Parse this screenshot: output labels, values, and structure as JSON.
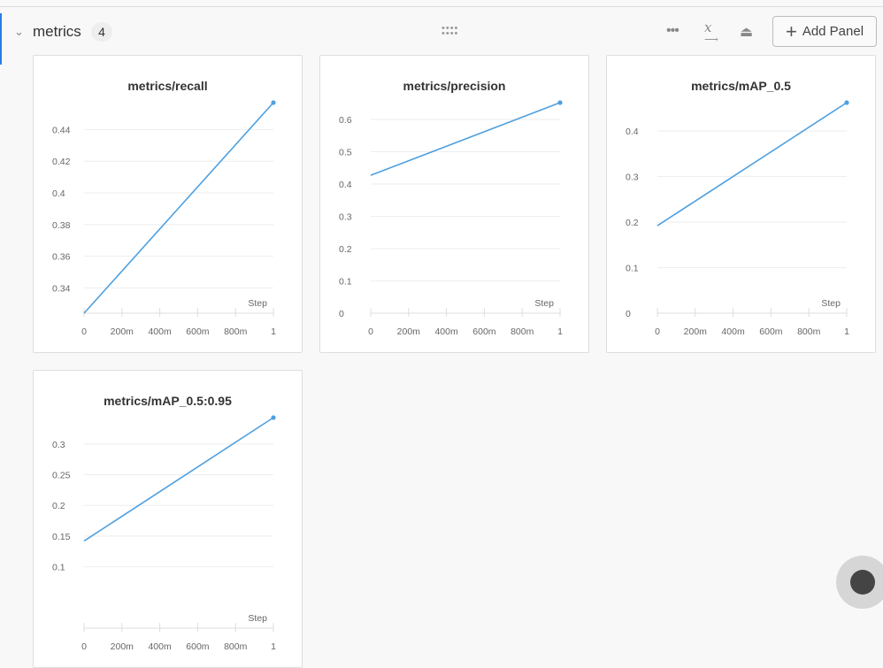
{
  "section": {
    "title": "metrics",
    "count": "4",
    "add_panel_label": "Add Panel",
    "icons": [
      "chevron-down-icon",
      "drag-handle-icon",
      "more-icon",
      "x-axis-icon",
      "iron-icon",
      "plus-icon"
    ]
  },
  "line_color": "#4ea0e0",
  "chart_data": [
    {
      "type": "line",
      "title": "metrics/recall",
      "xlabel": "Step",
      "x": [
        0,
        1
      ],
      "y": [
        0.324,
        0.457
      ],
      "xlim": [
        0,
        1
      ],
      "ylim": [
        0.324,
        0.457
      ],
      "yticks": [
        "0.34",
        "0.36",
        "0.38",
        "0.4",
        "0.42",
        "0.44"
      ],
      "xticks": [
        "0",
        "200m",
        "400m",
        "600m",
        "800m",
        "1"
      ],
      "grid": true
    },
    {
      "type": "line",
      "title": "metrics/precision",
      "xlabel": "Step",
      "x": [
        0,
        1
      ],
      "y": [
        0.427,
        0.652
      ],
      "xlim": [
        0,
        1
      ],
      "ylim": [
        0,
        0.652
      ],
      "yticks": [
        "0",
        "0.1",
        "0.2",
        "0.3",
        "0.4",
        "0.5",
        "0.6"
      ],
      "xticks": [
        "0",
        "200m",
        "400m",
        "600m",
        "800m",
        "1"
      ],
      "grid": true
    },
    {
      "type": "line",
      "title": "metrics/mAP_0.5",
      "xlabel": "Step",
      "x": [
        0,
        1
      ],
      "y": [
        0.192,
        0.462
      ],
      "xlim": [
        0,
        1
      ],
      "ylim": [
        0,
        0.462
      ],
      "yticks": [
        "0",
        "0.1",
        "0.2",
        "0.3",
        "0.4"
      ],
      "xticks": [
        "0",
        "200m",
        "400m",
        "600m",
        "800m",
        "1"
      ],
      "grid": true
    },
    {
      "type": "line",
      "title": "metrics/mAP_0.5:0.95",
      "xlabel": "Step",
      "x": [
        0,
        1
      ],
      "y": [
        0.142,
        0.343
      ],
      "xlim": [
        0,
        1
      ],
      "ylim": [
        0,
        0.343
      ],
      "yticks": [
        "0.1",
        "0.15",
        "0.2",
        "0.25",
        "0.3"
      ],
      "xticks": [
        "0",
        "200m",
        "400m",
        "600m",
        "800m",
        "1"
      ],
      "grid": true
    }
  ]
}
